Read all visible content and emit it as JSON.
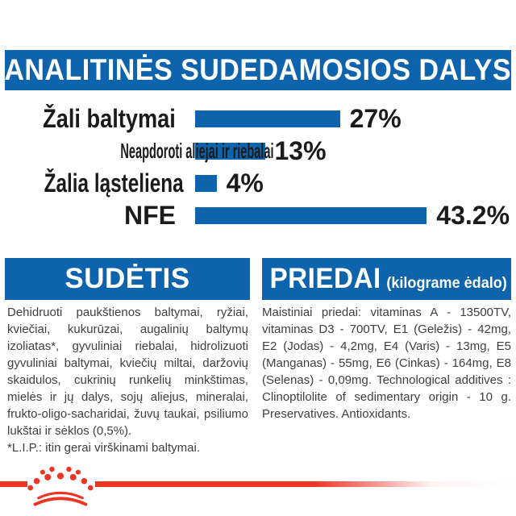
{
  "colors": {
    "brand_blue": "#0d64ad",
    "brand_red": "#ee3423",
    "label_text": "#1b1b1b",
    "body_text": "#3f3f3f"
  },
  "header": {
    "title": "ANALITINĖS SUDEDAMOSIOS DALYS"
  },
  "chart_data": {
    "type": "bar",
    "orientation": "horizontal",
    "title": "ANALITINĖS SUDEDAMOSIOS DALYS",
    "categories": [
      "Žali baltymai",
      "Neapdoroti aliejai ir riebalai",
      "Žalia ląsteliena",
      "NFE"
    ],
    "values": [
      27,
      13,
      4,
      43.2
    ],
    "value_labels": [
      "27%",
      "13%",
      "4%",
      "43.2%"
    ],
    "unit": "%",
    "bar_color": "#0d64ad",
    "xlim": [
      0,
      45
    ],
    "grid": false,
    "legend": false
  },
  "composition": {
    "title": "SUDĖTIS",
    "body": "Dehidruoti paukštienos baltymai, ryžiai, kviečiai, kukurūzai, augalinių baltymų izoliatas*, gyvuliniai riebalai, hidrolizuoti gyvuliniai baltymai, kviečių miltai, daržovių skaidulos, cukrinių runkelių minkštimas, mielės ir jų dalys, sojų aliejus, mineralai, frukto-oligo-sacharidai, žuvų taukai, psiliumo lukštai ir sėklos (0,5%).",
    "footnote": "*L.I.P.: itin gerai virškinami baltymai."
  },
  "additives": {
    "title": "PRIEDAI",
    "title_suffix": "(kilograme ėdalo)",
    "body": "Maistiniai priedai: vitaminas A - 13500TV, vitaminas D3 - 700TV, E1 (Geležis) - 42mg, E2 (Jodas) - 4,2mg, E4 (Varis) - 13mg, E5 (Manganas) - 55mg, E6 (Cinkas) - 164mg, E8 (Selenas) - 0,09mg. Technological additives : Clinoptilolite of sedimentary origin - 10 g. Preservatives. Antioxidants."
  },
  "footer": {
    "logo": "royal-canin-crown"
  }
}
